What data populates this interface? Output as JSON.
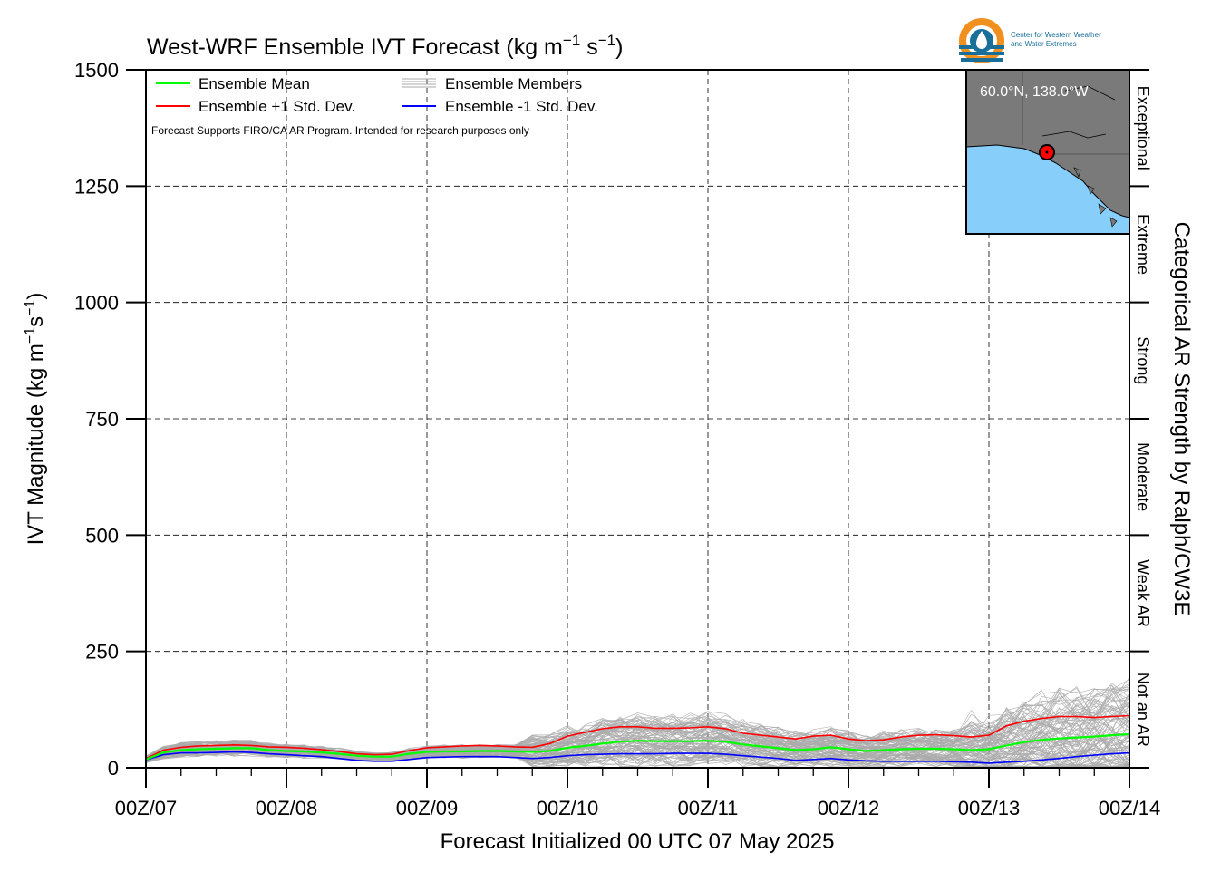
{
  "chart_data": {
    "type": "line",
    "title": "West-WRF Ensemble IVT Forecast (kg m",
    "title_units": {
      "exp1": "−1",
      "mid": " s",
      "exp2": "−1",
      "tail": ")"
    },
    "xlabel": "Forecast Initialized 00 UTC 07 May 2025",
    "ylabel": "IVT Magnitude (kg m",
    "ylabel_units": {
      "exp1": "−1",
      "mid": "s",
      "exp2": "−1",
      "tail": ")"
    },
    "right_axis_label": "Categorical AR Strength by Ralph/CW3E",
    "note": "Forecast Supports FIRO/CA AR Program. Intended for research purposes only",
    "ylim": [
      0,
      1500
    ],
    "xlim": [
      0,
      168
    ],
    "y_ticks": [
      {
        "value": 0,
        "label": "0"
      },
      {
        "value": 250,
        "label": "250"
      },
      {
        "value": 500,
        "label": "500"
      },
      {
        "value": 750,
        "label": "750"
      },
      {
        "value": 1000,
        "label": "1000"
      },
      {
        "value": 1250,
        "label": "1250"
      },
      {
        "value": 1500,
        "label": "1500"
      }
    ],
    "x_ticks": [
      {
        "value": 0,
        "label": "00Z/07"
      },
      {
        "value": 24,
        "label": "00Z/08"
      },
      {
        "value": 48,
        "label": "00Z/09"
      },
      {
        "value": 72,
        "label": "00Z/10"
      },
      {
        "value": 96,
        "label": "00Z/11"
      },
      {
        "value": 120,
        "label": "00Z/12"
      },
      {
        "value": 144,
        "label": "00Z/13"
      },
      {
        "value": 168,
        "label": "00Z/14"
      }
    ],
    "x_minor_step": 6,
    "grid": true,
    "categories_right": [
      {
        "label": "Not an AR",
        "range": [
          0,
          250
        ]
      },
      {
        "label": "Weak AR",
        "range": [
          250,
          500
        ]
      },
      {
        "label": "Moderate",
        "range": [
          500,
          750
        ]
      },
      {
        "label": "Strong",
        "range": [
          750,
          1000
        ]
      },
      {
        "label": "Extreme",
        "range": [
          1000,
          1250
        ]
      },
      {
        "label": "Exceptional",
        "range": [
          1250,
          1500
        ]
      }
    ],
    "legend": {
      "placement": "top-left",
      "entries": [
        {
          "label": "Ensemble Mean",
          "color": "#00ff00",
          "style": "line"
        },
        {
          "label": "Ensemble Members",
          "color": "#aaaaaa",
          "style": "multi"
        },
        {
          "label": "Ensemble +1 Std. Dev.",
          "color": "#ff0000",
          "style": "line"
        },
        {
          "label": "Ensemble -1 Std. Dev.",
          "color": "#0000ff",
          "style": "line"
        }
      ]
    },
    "series": [
      {
        "name": "Ensemble Mean",
        "color": "#00ff00",
        "x": [
          0,
          3,
          6,
          9,
          12,
          15,
          18,
          21,
          24,
          27,
          30,
          33,
          36,
          39,
          42,
          45,
          48,
          51,
          54,
          57,
          60,
          63,
          66,
          69,
          72,
          75,
          78,
          81,
          84,
          87,
          90,
          93,
          96,
          99,
          102,
          105,
          108,
          111,
          114,
          117,
          120,
          123,
          126,
          129,
          132,
          135,
          138,
          141,
          144,
          147,
          150,
          153,
          156,
          159,
          162,
          165,
          168
        ],
        "y": [
          18,
          33,
          38,
          40,
          41,
          42,
          42,
          38,
          36,
          35,
          33,
          30,
          26,
          24,
          24,
          30,
          34,
          35,
          35,
          36,
          36,
          35,
          34,
          36,
          43,
          47,
          52,
          56,
          58,
          57,
          57,
          57,
          58,
          56,
          50,
          46,
          42,
          38,
          40,
          44,
          40,
          36,
          38,
          40,
          41,
          41,
          40,
          38,
          40,
          48,
          55,
          60,
          63,
          65,
          67,
          70,
          72
        ]
      },
      {
        "name": "Ensemble +1 Std. Dev.",
        "color": "#ff0000",
        "x": [
          0,
          3,
          6,
          9,
          12,
          15,
          18,
          21,
          24,
          27,
          30,
          33,
          36,
          39,
          42,
          45,
          48,
          51,
          54,
          57,
          60,
          63,
          66,
          69,
          72,
          75,
          78,
          81,
          84,
          87,
          90,
          93,
          96,
          99,
          102,
          105,
          108,
          111,
          114,
          117,
          120,
          123,
          126,
          129,
          132,
          135,
          138,
          141,
          144,
          147,
          150,
          153,
          156,
          159,
          162,
          165,
          168
        ],
        "y": [
          20,
          38,
          44,
          47,
          48,
          49,
          48,
          45,
          44,
          42,
          39,
          35,
          30,
          28,
          29,
          37,
          43,
          45,
          47,
          48,
          47,
          45,
          44,
          52,
          68,
          76,
          84,
          88,
          88,
          85,
          85,
          86,
          88,
          84,
          74,
          70,
          66,
          62,
          68,
          70,
          62,
          58,
          60,
          66,
          70,
          71,
          69,
          66,
          70,
          90,
          100,
          106,
          110,
          110,
          108,
          110,
          112
        ]
      },
      {
        "name": "Ensemble -1 Std. Dev.",
        "color": "#0000ff",
        "x": [
          0,
          3,
          6,
          9,
          12,
          15,
          18,
          21,
          24,
          27,
          30,
          33,
          36,
          39,
          42,
          45,
          48,
          51,
          54,
          57,
          60,
          63,
          66,
          69,
          72,
          75,
          78,
          81,
          84,
          87,
          90,
          93,
          96,
          99,
          102,
          105,
          108,
          111,
          114,
          117,
          120,
          123,
          126,
          129,
          132,
          135,
          138,
          141,
          144,
          147,
          150,
          153,
          156,
          159,
          162,
          165,
          168
        ],
        "y": [
          17,
          28,
          32,
          32,
          33,
          34,
          33,
          30,
          28,
          26,
          24,
          20,
          16,
          14,
          14,
          18,
          22,
          23,
          24,
          24,
          24,
          22,
          20,
          22,
          26,
          28,
          29,
          30,
          30,
          30,
          31,
          31,
          31,
          29,
          26,
          23,
          20,
          16,
          18,
          20,
          17,
          15,
          14,
          14,
          14,
          14,
          13,
          12,
          10,
          12,
          14,
          17,
          20,
          24,
          27,
          30,
          32
        ]
      }
    ],
    "members": {
      "count": 100,
      "color": "#aaaaaa",
      "spread_note": "members spread around mean; max about 230 near 00Z/13 and 00Z/14"
    }
  },
  "inset_map": {
    "location_label": "60.0°N, 138.0°W",
    "land_color": "#7a7a7a",
    "ocean_color": "#87cefa",
    "marker_color": "#ff0000"
  },
  "logo": {
    "line1": "Center for Western Weather",
    "line2": "and Water Extremes",
    "ring_color": "#f0901e",
    "water_color": "#1a6f9a"
  }
}
